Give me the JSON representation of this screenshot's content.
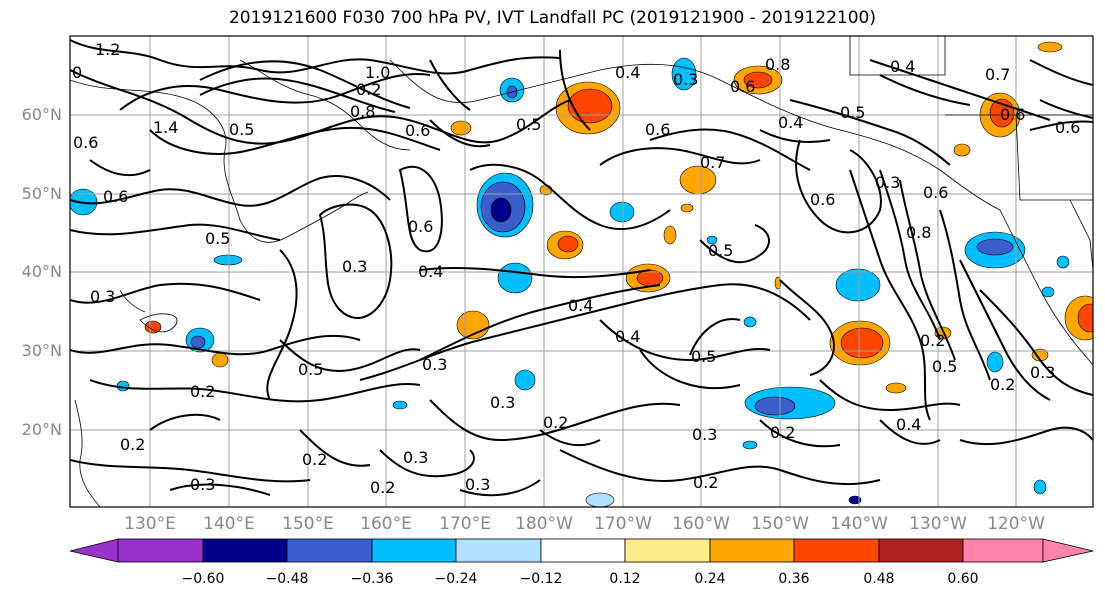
{
  "title": "2019121600 F030 700 hPa PV, IVT Landfall PC (2019121900 - 2019122100)",
  "latitude_labels": [
    "60°N",
    "50°N",
    "40°N",
    "30°N",
    "20°N"
  ],
  "longitude_labels": [
    "130°E",
    "140°E",
    "150°E",
    "160°E",
    "170°E",
    "180°W",
    "170°W",
    "160°W",
    "150°W",
    "140°W",
    "130°W",
    "120°W"
  ],
  "contour_labels": [
    "1.2",
    "0",
    "1.4",
    "0.5",
    "1.0",
    "0.6",
    "0.2",
    "0.8",
    "0.6",
    "0.5",
    "0.4",
    "0.3",
    "0.6",
    "0.8",
    "0.6",
    "0.4",
    "0.7",
    "0.4",
    "0.6",
    "0.6",
    "0.3",
    "0.5",
    "0.4",
    "0.3",
    "0.6",
    "0.4",
    "0.5",
    "0.6",
    "0.8",
    "0.5",
    "0.3",
    "0.4",
    "0.2",
    "0.2",
    "0.3",
    "0.5",
    "0.2",
    "0.2",
    "0.3",
    "0.2",
    "0.3",
    "0.3",
    "0.2",
    "0.5",
    "0.2",
    "0.3",
    "0.3",
    "0.4",
    "0.2",
    "0.2",
    "0.3",
    "0.6",
    "0.5",
    "0.7",
    "0.6"
  ],
  "colorbar": {
    "ticks": [
      "−0.60",
      "−0.48",
      "−0.36",
      "−0.24",
      "−0.12",
      "0.12",
      "0.24",
      "0.36",
      "0.48",
      "0.60"
    ],
    "colors": [
      "#9932CC",
      "#00008B",
      "#3A5FCD",
      "#00BFFF",
      "#B0E2FF",
      "#FFFFFF",
      "#FFEC8B",
      "#FFA500",
      "#FF4500",
      "#B22222",
      "#FF82AB"
    ]
  }
}
